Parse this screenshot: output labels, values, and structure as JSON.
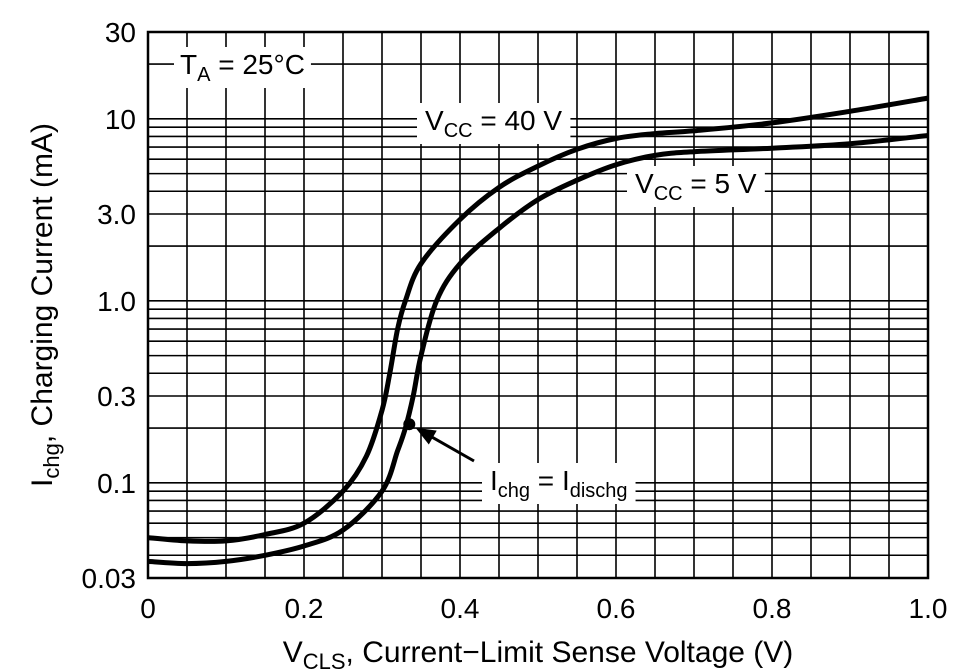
{
  "chart_data": {
    "type": "line",
    "x_scale": "linear",
    "y_scale": "log",
    "xlim": [
      0,
      1.0
    ],
    "ylim": [
      0.03,
      30
    ],
    "grid": true,
    "x_ticks": [
      "0",
      "0.2",
      "0.4",
      "0.6",
      "0.8",
      "1.0"
    ],
    "y_ticks": [
      "0.03",
      "0.1",
      "0.3",
      "1.0",
      "3.0",
      "10",
      "30"
    ],
    "xlabel": {
      "main": "V",
      "sub": "CLS",
      "rest": ", Current−Limit Sense Voltage (V)"
    },
    "ylabel": {
      "main": "I",
      "sub": "chg",
      "rest": ", Charging Current (mA)"
    },
    "annotations": {
      "temp": {
        "main": "T",
        "sub": "A",
        "rest": " = 25°C"
      },
      "equal": {
        "main": "I",
        "sub1": "chg",
        "mid": " = I",
        "sub2": "dischg"
      }
    },
    "series": [
      {
        "name": {
          "main": "V",
          "sub": "CC",
          "rest": " = 40 V"
        },
        "x": [
          0,
          0.05,
          0.1,
          0.15,
          0.2,
          0.25,
          0.28,
          0.3,
          0.31,
          0.32,
          0.33,
          0.35,
          0.4,
          0.45,
          0.5,
          0.55,
          0.6,
          0.65,
          0.7,
          0.8,
          0.9,
          1.0
        ],
        "y": [
          0.05,
          0.048,
          0.048,
          0.052,
          0.06,
          0.09,
          0.14,
          0.25,
          0.4,
          0.7,
          1.0,
          1.6,
          2.8,
          4.2,
          5.5,
          6.8,
          7.8,
          8.3,
          8.6,
          9.5,
          11.0,
          13.0
        ]
      },
      {
        "name": {
          "main": "V",
          "sub": "CC",
          "rest": " = 5 V"
        },
        "x": [
          0,
          0.05,
          0.1,
          0.15,
          0.2,
          0.25,
          0.3,
          0.32,
          0.33,
          0.34,
          0.35,
          0.37,
          0.4,
          0.45,
          0.5,
          0.55,
          0.6,
          0.65,
          0.7,
          0.8,
          0.9,
          1.0
        ],
        "y": [
          0.037,
          0.036,
          0.037,
          0.04,
          0.045,
          0.055,
          0.09,
          0.15,
          0.2,
          0.3,
          0.5,
          1.0,
          1.6,
          2.5,
          3.6,
          4.6,
          5.6,
          6.3,
          6.6,
          6.9,
          7.3,
          8.1
        ]
      }
    ],
    "marker_point": {
      "x": 0.335,
      "y": 0.21
    }
  }
}
